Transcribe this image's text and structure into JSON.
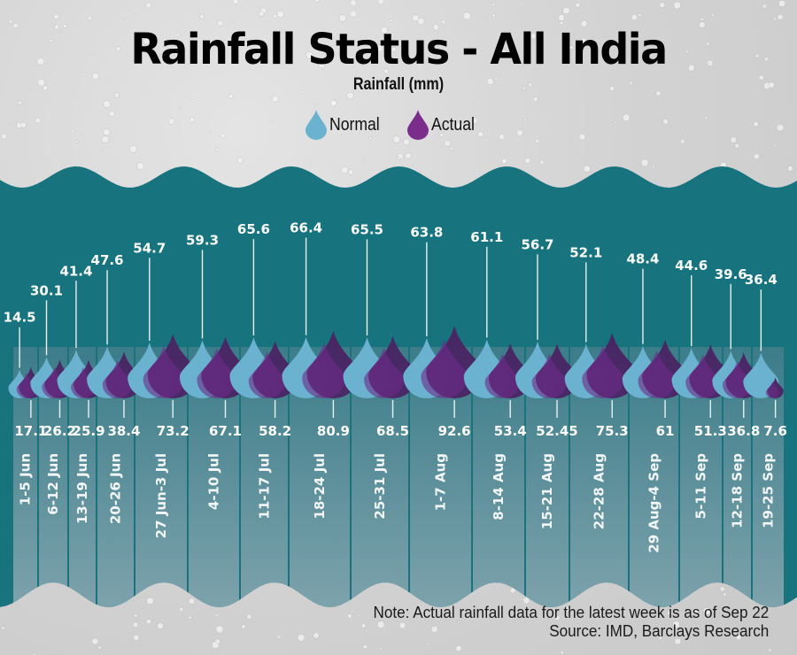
{
  "header": {
    "title": "Rainfall Status - All India",
    "subtitle": "Rainfall (mm)"
  },
  "legend": [
    {
      "label": "Normal",
      "icon": "drop-icon",
      "color": "#6ab2cf"
    },
    {
      "label": "Actual",
      "icon": "drop-icon",
      "color": "#7b2d8c"
    }
  ],
  "colors": {
    "panel": "#17737e",
    "normal": "#6ab2cf",
    "actual_dark": "#4a2464",
    "actual_light": "#6f2c8a",
    "background": "#d4d4d4"
  },
  "chart_data": {
    "type": "bar",
    "title": "Rainfall Status - All India",
    "ylabel": "Rainfall (mm)",
    "xlabel": "",
    "legend_position": "top-center",
    "categories": [
      "1-5 Jun",
      "6-12 Jun",
      "13-19 Jun",
      "20-26 Jun",
      "27 Jun-3 Jul",
      "4-10 Jul",
      "11-17 Jul",
      "18-24 Jul",
      "25-31 Jul",
      "1-7 Aug",
      "8-14 Aug",
      "15-21 Aug",
      "22-28 Aug",
      "29 Aug-4 Sep",
      "5-11 Sep",
      "12-18 Sep",
      "19-25 Sep"
    ],
    "series": [
      {
        "name": "Normal",
        "values": [
          14.5,
          30.1,
          41.4,
          47.6,
          54.7,
          59.3,
          65.6,
          66.4,
          65.5,
          63.8,
          61.1,
          56.7,
          52.1,
          48.4,
          44.6,
          39.6,
          36.4
        ]
      },
      {
        "name": "Actual",
        "values": [
          17.1,
          26.2,
          25.9,
          38.4,
          73.2,
          67.1,
          58.2,
          80.9,
          68.5,
          92.6,
          53.4,
          52.45,
          75.3,
          61,
          51.3,
          36.8,
          7.6
        ]
      }
    ],
    "normal_labels": [
      "14.5",
      "30.1",
      "41.4",
      "47.6",
      "54.7",
      "59.3",
      "65.6",
      "66.4",
      "65.5",
      "63.8",
      "61.1",
      "56.7",
      "52.1",
      "48.4",
      "44.6",
      "39.6",
      "36.4"
    ],
    "actual_labels": [
      "17.1",
      "26.2",
      "25.9",
      "38.4",
      "73.2",
      "67.1",
      "58.2",
      "80.9",
      "68.5",
      "92.6",
      "53.4",
      "52.45",
      "75.3",
      "61",
      "51.3",
      "36.8",
      "7.6"
    ]
  },
  "footer": {
    "note": "Note: Actual rainfall data for the latest week is as of Sep 22",
    "source": "Source: IMD, Barclays Research"
  }
}
